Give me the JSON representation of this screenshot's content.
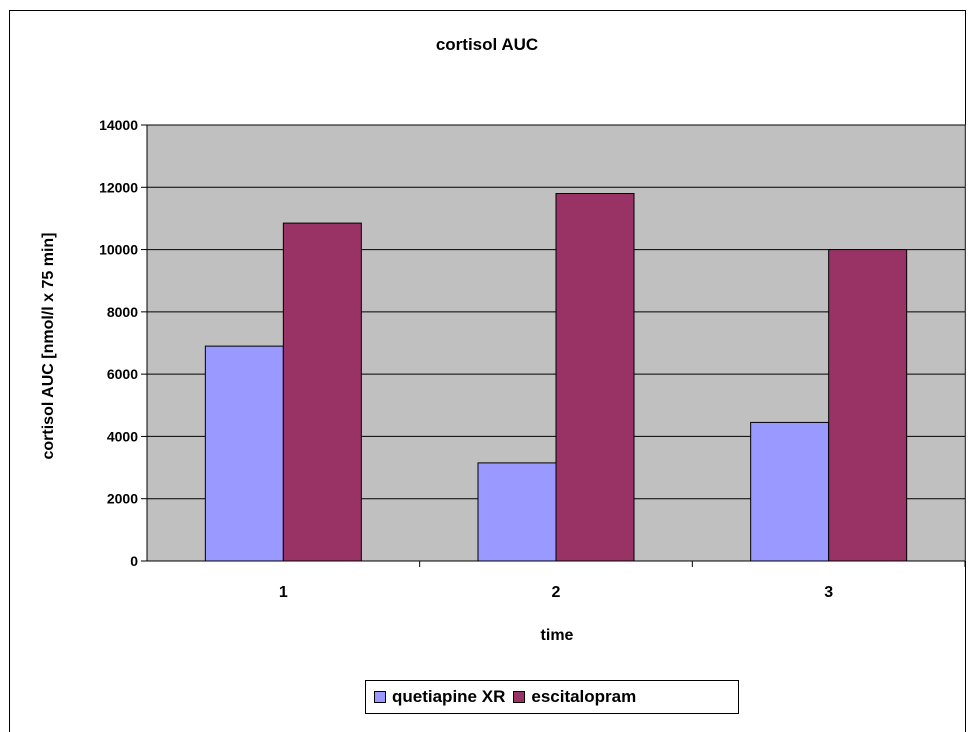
{
  "chart_data": {
    "type": "bar",
    "title": "cortisol AUC",
    "xlabel": "time",
    "ylabel": "cortisol AUC  [nmol/l x 75 min]",
    "categories": [
      "1",
      "2",
      "3"
    ],
    "series": [
      {
        "name": "quetiapine XR",
        "values": [
          6900,
          3150,
          4450
        ],
        "color": "#9999ff"
      },
      {
        "name": "escitalopram",
        "values": [
          10850,
          11800,
          10000
        ],
        "color": "#993366"
      }
    ],
    "ylim": [
      0,
      14000
    ],
    "yticks": [
      0,
      2000,
      4000,
      6000,
      8000,
      10000,
      12000,
      14000
    ],
    "ytick_labels": [
      "0",
      "2000",
      "4000",
      "6000",
      "8000",
      "10000",
      "12000",
      "14000"
    ],
    "grid": true,
    "plot_background": "#c0c0c0",
    "legend_position": "bottom"
  }
}
